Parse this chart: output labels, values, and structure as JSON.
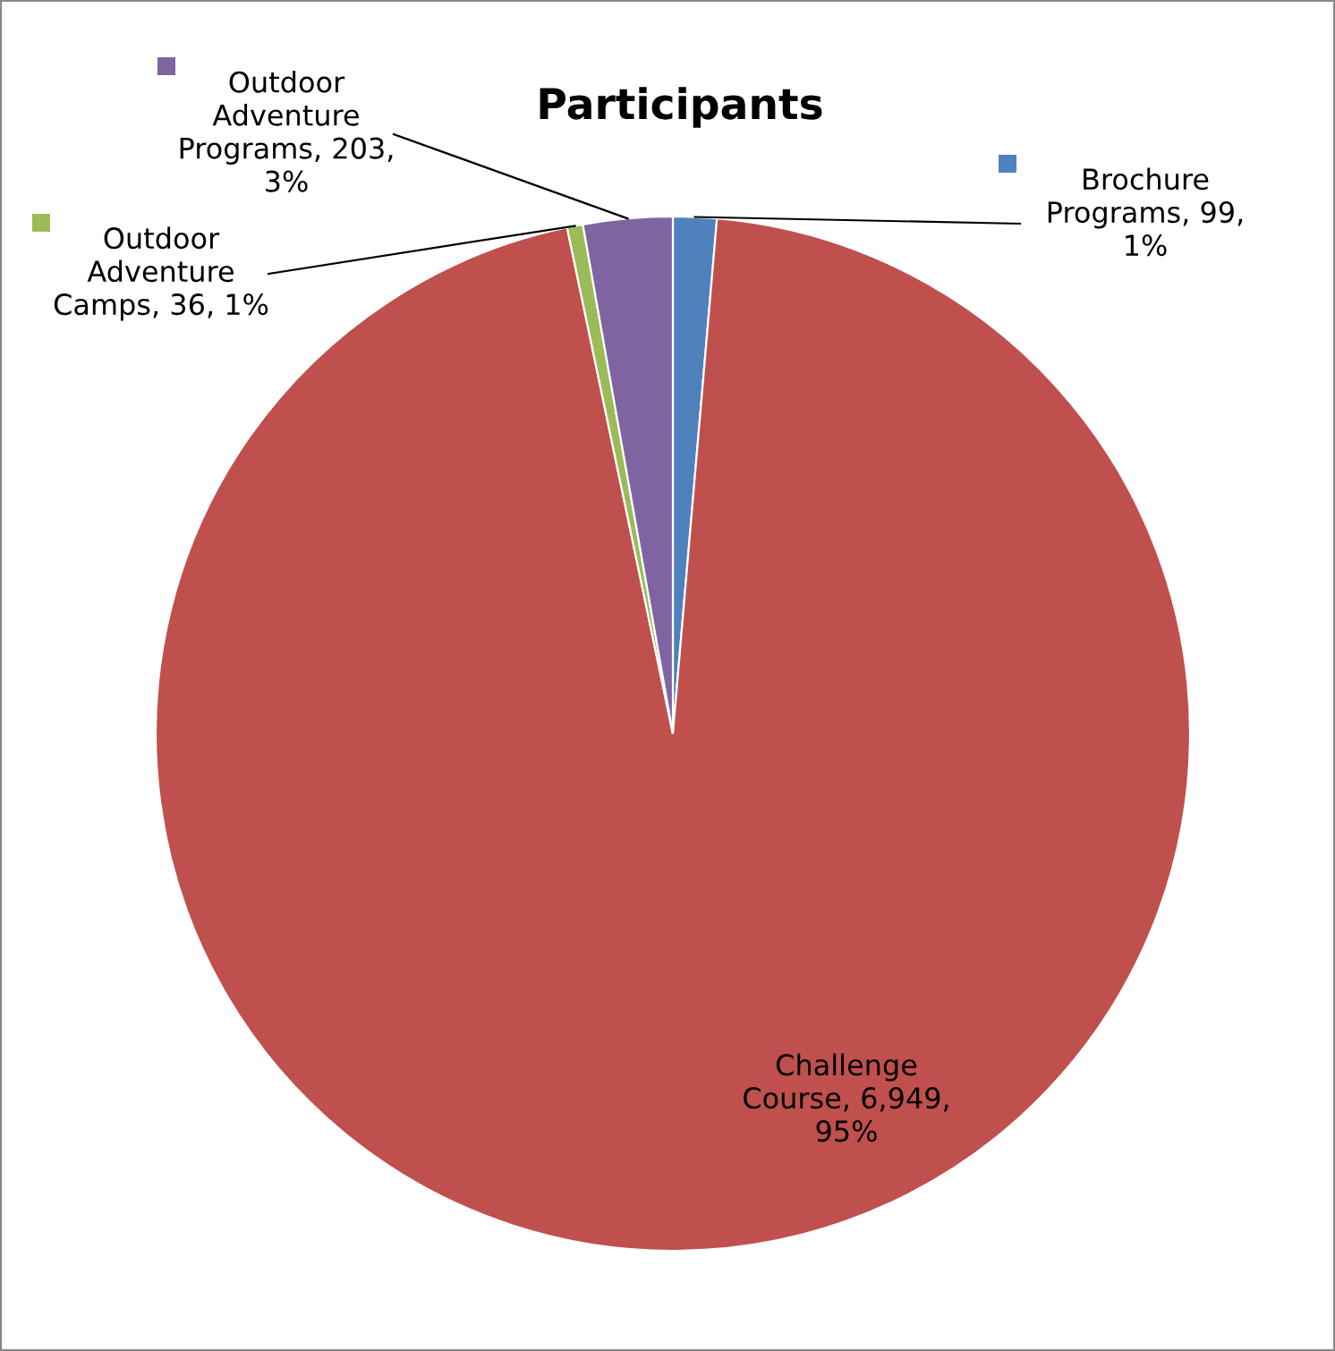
{
  "chart_data": {
    "type": "pie",
    "title": "Participants",
    "categories": [
      "Brochure Programs",
      "Challenge Course",
      "Outdoor Adventure Camps",
      "Outdoor Adventure Programs"
    ],
    "values": [
      99,
      6949,
      36,
      203
    ],
    "colors": [
      "#4f81bd",
      "#c0504d",
      "#9bbb59",
      "#8064a2"
    ],
    "value_labels": [
      "99, 1%",
      "6,949, 95%",
      "36, 1%",
      "203, 3%"
    ],
    "legend": "top"
  }
}
